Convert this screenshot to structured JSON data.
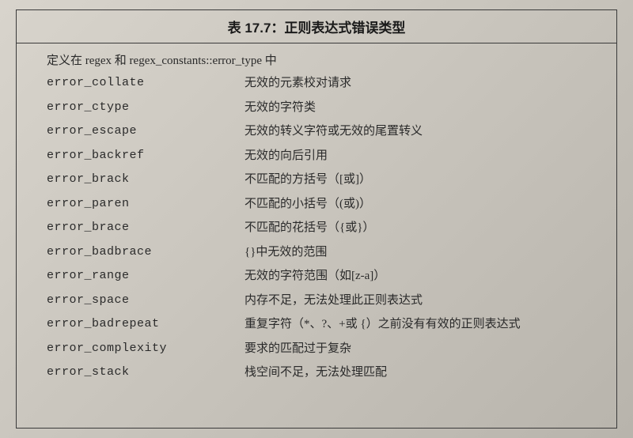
{
  "table": {
    "title": "表 17.7：正则表达式错误类型",
    "header": "定义在 regex 和 regex_constants::error_type 中",
    "rows": [
      {
        "code": "error_collate",
        "desc": "无效的元素校对请求"
      },
      {
        "code": "error_ctype",
        "desc": "无效的字符类"
      },
      {
        "code": "error_escape",
        "desc": "无效的转义字符或无效的尾置转义"
      },
      {
        "code": "error_backref",
        "desc": "无效的向后引用"
      },
      {
        "code": "error_brack",
        "desc": "不匹配的方括号（[或]）"
      },
      {
        "code": "error_paren",
        "desc": "不匹配的小括号（(或)）"
      },
      {
        "code": "error_brace",
        "desc": "不匹配的花括号（{或}）"
      },
      {
        "code": "error_badbrace",
        "desc": "{}中无效的范围"
      },
      {
        "code": "error_range",
        "desc": "无效的字符范围（如[z-a]）"
      },
      {
        "code": "error_space",
        "desc": "内存不足，无法处理此正则表达式"
      },
      {
        "code": "error_badrepeat",
        "desc": "重复字符（*、?、+或 {）之前没有有效的正则表达式"
      },
      {
        "code": "error_complexity",
        "desc": "要求的匹配过于复杂"
      },
      {
        "code": "error_stack",
        "desc": "栈空间不足，无法处理匹配"
      }
    ]
  }
}
